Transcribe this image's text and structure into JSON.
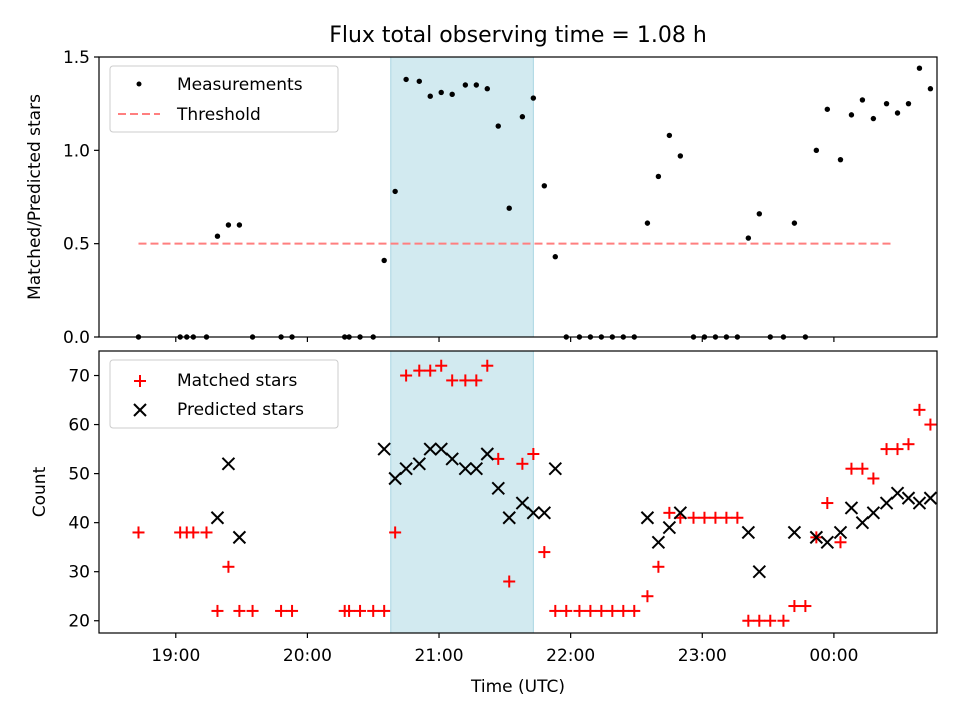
{
  "chart_data": [
    {
      "type": "scatter",
      "title": "Flux total observing time = 1.08 h",
      "xlabel": "",
      "ylabel": "Matched/Predicted stars",
      "xlim": [
        "18:25",
        "00:47"
      ],
      "ylim": [
        0,
        1.5
      ],
      "yticks": [
        0.0,
        0.5,
        1.0,
        1.5
      ],
      "ytick_labels": [
        "0.0",
        "0.5",
        "1.0",
        "1.5"
      ],
      "highlight_span": [
        "20:38",
        "21:43"
      ],
      "legend_position": "upper-left",
      "threshold": {
        "name": "Threshold",
        "value": 0.5,
        "x_range": [
          "18:43",
          "00:26"
        ],
        "color": "#ff7f7f"
      },
      "series": [
        {
          "name": "Measurements",
          "marker": "dot",
          "color": "#000000",
          "points": [
            [
              "18:43",
              0.0
            ],
            [
              "19:02",
              0.0
            ],
            [
              "19:05",
              0.0
            ],
            [
              "19:08",
              0.0
            ],
            [
              "19:14",
              0.0
            ],
            [
              "19:19",
              0.54
            ],
            [
              "19:24",
              0.6
            ],
            [
              "19:29",
              0.6
            ],
            [
              "19:35",
              0.0
            ],
            [
              "19:48",
              0.0
            ],
            [
              "19:53",
              0.0
            ],
            [
              "20:17",
              0.0
            ],
            [
              "20:19",
              0.0
            ],
            [
              "20:24",
              0.0
            ],
            [
              "20:30",
              0.0
            ],
            [
              "20:35",
              0.41
            ],
            [
              "20:40",
              0.78
            ],
            [
              "20:45",
              1.38
            ],
            [
              "20:51",
              1.37
            ],
            [
              "20:56",
              1.29
            ],
            [
              "21:01",
              1.31
            ],
            [
              "21:06",
              1.3
            ],
            [
              "21:12",
              1.35
            ],
            [
              "21:17",
              1.35
            ],
            [
              "21:22",
              1.33
            ],
            [
              "21:27",
              1.13
            ],
            [
              "21:32",
              0.69
            ],
            [
              "21:38",
              1.18
            ],
            [
              "21:43",
              1.28
            ],
            [
              "21:48",
              0.81
            ],
            [
              "21:53",
              0.43
            ],
            [
              "21:58",
              0.0
            ],
            [
              "22:04",
              0.0
            ],
            [
              "22:09",
              0.0
            ],
            [
              "22:14",
              0.0
            ],
            [
              "22:19",
              0.0
            ],
            [
              "22:24",
              0.0
            ],
            [
              "22:29",
              0.0
            ],
            [
              "22:35",
              0.61
            ],
            [
              "22:40",
              0.86
            ],
            [
              "22:45",
              1.08
            ],
            [
              "22:50",
              0.97
            ],
            [
              "22:56",
              0.0
            ],
            [
              "23:01",
              0.0
            ],
            [
              "23:06",
              0.0
            ],
            [
              "23:11",
              0.0
            ],
            [
              "23:16",
              0.0
            ],
            [
              "23:21",
              0.53
            ],
            [
              "23:26",
              0.66
            ],
            [
              "23:31",
              0.0
            ],
            [
              "23:37",
              0.0
            ],
            [
              "23:42",
              0.61
            ],
            [
              "23:47",
              0.0
            ],
            [
              "23:52",
              1.0
            ],
            [
              "23:57",
              1.22
            ],
            [
              "00:03",
              0.95
            ],
            [
              "00:08",
              1.19
            ],
            [
              "00:13",
              1.27
            ],
            [
              "00:18",
              1.17
            ],
            [
              "00:24",
              1.25
            ],
            [
              "00:29",
              1.2
            ],
            [
              "00:34",
              1.25
            ],
            [
              "00:39",
              1.44
            ],
            [
              "00:44",
              1.33
            ]
          ]
        }
      ]
    },
    {
      "type": "scatter",
      "title": "",
      "xlabel": "Time (UTC)",
      "ylabel": "Count",
      "xlim": [
        "18:25",
        "00:47"
      ],
      "ylim": [
        17.5,
        75
      ],
      "yticks": [
        20,
        30,
        40,
        50,
        60,
        70
      ],
      "ytick_labels": [
        "20",
        "30",
        "40",
        "50",
        "60",
        "70"
      ],
      "xticks": [
        "19:00",
        "20:00",
        "21:00",
        "22:00",
        "23:00",
        "00:00"
      ],
      "xtick_labels": [
        "19:00",
        "20:00",
        "21:00",
        "22:00",
        "23:00",
        "00:00"
      ],
      "highlight_span": [
        "20:38",
        "21:43"
      ],
      "legend_position": "upper-left",
      "series": [
        {
          "name": "Matched stars",
          "marker": "plus",
          "color": "#ff0000",
          "points": [
            [
              "18:43",
              38
            ],
            [
              "19:02",
              38
            ],
            [
              "19:05",
              38
            ],
            [
              "19:08",
              38
            ],
            [
              "19:14",
              38
            ],
            [
              "19:19",
              22
            ],
            [
              "19:24",
              31
            ],
            [
              "19:29",
              22
            ],
            [
              "19:35",
              22
            ],
            [
              "19:48",
              22
            ],
            [
              "19:53",
              22
            ],
            [
              "20:17",
              22
            ],
            [
              "20:19",
              22
            ],
            [
              "20:24",
              22
            ],
            [
              "20:30",
              22
            ],
            [
              "20:35",
              22
            ],
            [
              "20:40",
              38
            ],
            [
              "20:45",
              70
            ],
            [
              "20:51",
              71
            ],
            [
              "20:56",
              71
            ],
            [
              "21:01",
              72
            ],
            [
              "21:06",
              69
            ],
            [
              "21:12",
              69
            ],
            [
              "21:17",
              69
            ],
            [
              "21:22",
              72
            ],
            [
              "21:27",
              53
            ],
            [
              "21:32",
              28
            ],
            [
              "21:38",
              52
            ],
            [
              "21:43",
              54
            ],
            [
              "21:48",
              34
            ],
            [
              "21:53",
              22
            ],
            [
              "21:58",
              22
            ],
            [
              "22:04",
              22
            ],
            [
              "22:09",
              22
            ],
            [
              "22:14",
              22
            ],
            [
              "22:19",
              22
            ],
            [
              "22:24",
              22
            ],
            [
              "22:29",
              22
            ],
            [
              "22:35",
              25
            ],
            [
              "22:40",
              31
            ],
            [
              "22:45",
              42
            ],
            [
              "22:50",
              41
            ],
            [
              "22:56",
              41
            ],
            [
              "23:01",
              41
            ],
            [
              "23:06",
              41
            ],
            [
              "23:11",
              41
            ],
            [
              "23:16",
              41
            ],
            [
              "23:21",
              20
            ],
            [
              "23:26",
              20
            ],
            [
              "23:31",
              20
            ],
            [
              "23:37",
              20
            ],
            [
              "23:42",
              23
            ],
            [
              "23:47",
              23
            ],
            [
              "23:52",
              37
            ],
            [
              "23:57",
              44
            ],
            [
              "00:03",
              36
            ],
            [
              "00:08",
              51
            ],
            [
              "00:13",
              51
            ],
            [
              "00:18",
              49
            ],
            [
              "00:24",
              55
            ],
            [
              "00:29",
              55
            ],
            [
              "00:34",
              56
            ],
            [
              "00:39",
              63
            ],
            [
              "00:44",
              60
            ]
          ]
        },
        {
          "name": "Predicted stars",
          "marker": "x",
          "color": "#000000",
          "points": [
            [
              "19:19",
              41
            ],
            [
              "19:24",
              52
            ],
            [
              "19:29",
              37
            ],
            [
              "20:35",
              55
            ],
            [
              "20:40",
              49
            ],
            [
              "20:45",
              51
            ],
            [
              "20:51",
              52
            ],
            [
              "20:56",
              55
            ],
            [
              "21:01",
              55
            ],
            [
              "21:06",
              53
            ],
            [
              "21:12",
              51
            ],
            [
              "21:17",
              51
            ],
            [
              "21:22",
              54
            ],
            [
              "21:27",
              47
            ],
            [
              "21:32",
              41
            ],
            [
              "21:38",
              44
            ],
            [
              "21:43",
              42
            ],
            [
              "21:48",
              42
            ],
            [
              "21:53",
              51
            ],
            [
              "22:35",
              41
            ],
            [
              "22:40",
              36
            ],
            [
              "22:45",
              39
            ],
            [
              "22:50",
              42
            ],
            [
              "23:21",
              38
            ],
            [
              "23:26",
              30
            ],
            [
              "23:42",
              38
            ],
            [
              "23:52",
              37
            ],
            [
              "23:57",
              36
            ],
            [
              "00:03",
              38
            ],
            [
              "00:08",
              43
            ],
            [
              "00:13",
              40
            ],
            [
              "00:18",
              42
            ],
            [
              "00:24",
              44
            ],
            [
              "00:29",
              46
            ],
            [
              "00:34",
              45
            ],
            [
              "00:39",
              44
            ],
            [
              "00:44",
              45
            ]
          ]
        }
      ]
    }
  ],
  "colors": {
    "highlight_span": "#d2eaf0",
    "highlight_span_edge": "#a8d5e2"
  }
}
